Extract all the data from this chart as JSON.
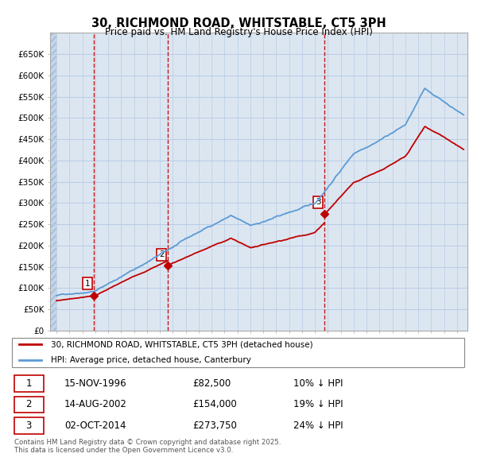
{
  "title": "30, RICHMOND ROAD, WHITSTABLE, CT5 3PH",
  "subtitle": "Price paid vs. HM Land Registry's House Price Index (HPI)",
  "ylim": [
    0,
    700000
  ],
  "yticks": [
    0,
    50000,
    100000,
    150000,
    200000,
    250000,
    300000,
    350000,
    400000,
    450000,
    500000,
    550000,
    600000,
    650000
  ],
  "ytick_labels": [
    "£0",
    "£50K",
    "£100K",
    "£150K",
    "£200K",
    "£250K",
    "£300K",
    "£350K",
    "£400K",
    "£450K",
    "£500K",
    "£550K",
    "£600K",
    "£650K"
  ],
  "hpi_color": "#5b9bd5",
  "price_color": "#c00000",
  "vline_color": "#c00000",
  "grid_color": "#b8cce4",
  "plot_bg": "#dce6f1",
  "hatch_bg": "#c5d5e8",
  "purchases": [
    {
      "date_num": 1996.87,
      "price": 82500,
      "label": "1"
    },
    {
      "date_num": 2002.62,
      "price": 154000,
      "label": "2"
    },
    {
      "date_num": 2014.75,
      "price": 273750,
      "label": "3"
    }
  ],
  "legend_entries": [
    "30, RICHMOND ROAD, WHITSTABLE, CT5 3PH (detached house)",
    "HPI: Average price, detached house, Canterbury"
  ],
  "table_entries": [
    {
      "num": "1",
      "date": "15-NOV-1996",
      "price": "£82,500",
      "hpi": "10% ↓ HPI"
    },
    {
      "num": "2",
      "date": "14-AUG-2002",
      "price": "£154,000",
      "hpi": "19% ↓ HPI"
    },
    {
      "num": "3",
      "date": "02-OCT-2014",
      "price": "£273,750",
      "hpi": "24% ↓ HPI"
    }
  ],
  "footer": "Contains HM Land Registry data © Crown copyright and database right 2025.\nThis data is licensed under the Open Government Licence v3.0.",
  "xmin": 1993.5,
  "xmax": 2025.8
}
